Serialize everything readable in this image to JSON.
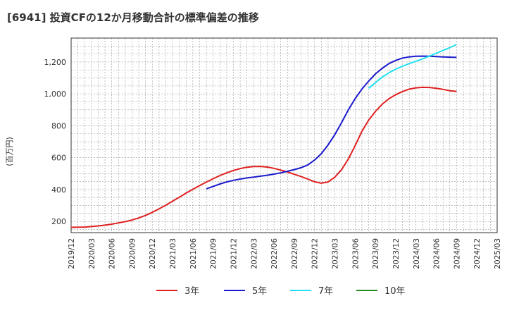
{
  "chart_data": {
    "type": "line",
    "title": "[6941]  投資CFの12か月移動合計の標準偏差の推移",
    "ylabel": "(百万円)",
    "xlabel": "",
    "ylim": [
      130,
      1350
    ],
    "y_ticks": [
      200,
      400,
      600,
      800,
      "1,000",
      "1,200"
    ],
    "y_tick_values": [
      200,
      400,
      600,
      800,
      1000,
      1200
    ],
    "x_range": [
      "2019-12",
      "2025-03"
    ],
    "x_ticks": [
      "2019/12",
      "2020/03",
      "2020/06",
      "2020/09",
      "2020/12",
      "2021/03",
      "2021/06",
      "2021/09",
      "2021/12",
      "2022/03",
      "2022/06",
      "2022/09",
      "2022/12",
      "2023/03",
      "2023/06",
      "2023/09",
      "2023/12",
      "2024/03",
      "2024/06",
      "2024/09",
      "2024/12",
      "2025/03"
    ],
    "grid": true,
    "legend_position": "bottom",
    "series": [
      {
        "name": "3年",
        "color": "#e02020",
        "x": [
          "2019-12",
          "2020-01",
          "2020-02",
          "2020-03",
          "2020-04",
          "2020-05",
          "2020-06",
          "2020-07",
          "2020-08",
          "2020-09",
          "2020-10",
          "2020-11",
          "2020-12",
          "2021-01",
          "2021-02",
          "2021-03",
          "2021-04",
          "2021-05",
          "2021-06",
          "2021-07",
          "2021-08",
          "2021-09",
          "2021-10",
          "2021-11",
          "2021-12",
          "2022-01",
          "2022-02",
          "2022-03",
          "2022-04",
          "2022-05",
          "2022-06",
          "2022-07",
          "2022-08",
          "2022-09",
          "2022-10",
          "2022-11",
          "2022-12",
          "2023-01",
          "2023-02",
          "2023-03",
          "2023-04",
          "2023-05",
          "2023-06",
          "2023-07",
          "2023-08",
          "2023-09",
          "2023-10",
          "2023-11",
          "2023-12",
          "2024-01",
          "2024-02",
          "2024-03",
          "2024-04",
          "2024-05",
          "2024-06",
          "2024-07",
          "2024-08",
          "2024-09"
        ],
        "values": [
          163,
          164,
          165,
          168,
          172,
          177,
          183,
          191,
          199,
          209,
          222,
          238,
          257,
          279,
          302,
          327,
          352,
          378,
          402,
          425,
          447,
          468,
          488,
          505,
          520,
          532,
          540,
          544,
          545,
          541,
          533,
          522,
          510,
          496,
          482,
          466,
          449,
          440,
          448,
          478,
          525,
          592,
          675,
          765,
          835,
          890,
          935,
          970,
          995,
          1015,
          1030,
          1038,
          1041,
          1040,
          1035,
          1028,
          1020,
          1016
        ]
      },
      {
        "name": "5年",
        "color": "#1a1acc",
        "x": [
          "2021-08",
          "2021-09",
          "2021-10",
          "2021-11",
          "2021-12",
          "2022-01",
          "2022-02",
          "2022-03",
          "2022-04",
          "2022-05",
          "2022-06",
          "2022-07",
          "2022-08",
          "2022-09",
          "2022-10",
          "2022-11",
          "2022-12",
          "2023-01",
          "2023-02",
          "2023-03",
          "2023-04",
          "2023-05",
          "2023-06",
          "2023-07",
          "2023-08",
          "2023-09",
          "2023-10",
          "2023-11",
          "2023-12",
          "2024-01",
          "2024-02",
          "2024-03",
          "2024-04",
          "2024-05",
          "2024-06",
          "2024-07",
          "2024-08",
          "2024-09"
        ],
        "values": [
          405,
          420,
          435,
          448,
          458,
          466,
          473,
          478,
          484,
          490,
          497,
          505,
          515,
          525,
          537,
          555,
          585,
          625,
          680,
          745,
          820,
          900,
          970,
          1030,
          1080,
          1125,
          1160,
          1190,
          1210,
          1225,
          1232,
          1236,
          1237,
          1236,
          1234,
          1232,
          1230,
          1229
        ]
      },
      {
        "name": "7年",
        "color": "#22e0f0",
        "x": [
          "2023-08",
          "2023-09",
          "2023-10",
          "2023-11",
          "2023-12",
          "2024-01",
          "2024-02",
          "2024-03",
          "2024-04",
          "2024-05",
          "2024-06",
          "2024-07",
          "2024-08",
          "2024-09"
        ],
        "values": [
          1035,
          1070,
          1105,
          1132,
          1155,
          1173,
          1190,
          1205,
          1220,
          1237,
          1255,
          1272,
          1290,
          1310
        ]
      },
      {
        "name": "10年",
        "color": "#228b22",
        "x": [],
        "values": []
      }
    ]
  }
}
